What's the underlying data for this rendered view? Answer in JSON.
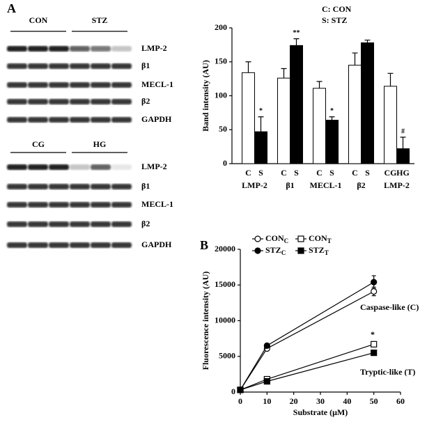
{
  "panel_a": {
    "label": "A",
    "blots": [
      {
        "conditions": [
          "CON",
          "STZ"
        ],
        "rows": [
          "LMP-2",
          "β1",
          "MECL-1",
          "β2",
          "GAPDH"
        ]
      },
      {
        "conditions": [
          "CG",
          "HG"
        ],
        "rows": [
          "LMP-2",
          "β1",
          "MECL-1",
          "β2",
          "GAPDH"
        ]
      }
    ]
  },
  "chart_data": [
    {
      "type": "bar",
      "legend_text": [
        "C: CON",
        "S: STZ"
      ],
      "ylabel": "Band intensity (AU)",
      "ylim": [
        0,
        200
      ],
      "yticks": [
        0,
        50,
        100,
        150,
        200
      ],
      "groups": [
        {
          "label": "LMP-2",
          "bars": [
            {
              "label": "C",
              "value": 134,
              "error": 16,
              "color": "#ffffff"
            },
            {
              "label": "S",
              "value": 47,
              "error": 22,
              "color": "#000000",
              "annotation": "*"
            }
          ]
        },
        {
          "label": "β1",
          "bars": [
            {
              "label": "C",
              "value": 126,
              "error": 14,
              "color": "#ffffff"
            },
            {
              "label": "S",
              "value": 174,
              "error": 10,
              "color": "#000000",
              "annotation": "**"
            }
          ]
        },
        {
          "label": "MECL-1",
          "bars": [
            {
              "label": "C",
              "value": 111,
              "error": 10,
              "color": "#ffffff"
            },
            {
              "label": "S",
              "value": 64,
              "error": 5,
              "color": "#000000",
              "annotation": "*"
            }
          ]
        },
        {
          "label": "β2",
          "bars": [
            {
              "label": "C",
              "value": 145,
              "error": 18,
              "color": "#ffffff"
            },
            {
              "label": "S",
              "value": 178,
              "error": 4,
              "color": "#000000"
            }
          ]
        },
        {
          "label": "LMP-2",
          "bars": [
            {
              "label": "CG",
              "value": 114,
              "error": 19,
              "color": "#ffffff"
            },
            {
              "label": "HG",
              "value": 22,
              "error": 17,
              "color": "#000000",
              "annotation": "#"
            }
          ]
        }
      ]
    },
    {
      "type": "line",
      "panel_label": "B",
      "xlabel": "Substrate (μM)",
      "ylabel": "Fluorescence intensity (AU)",
      "x": [
        0,
        10,
        50
      ],
      "xlim": [
        0,
        60
      ],
      "xticks": [
        0,
        10,
        20,
        30,
        40,
        50,
        60
      ],
      "ylim": [
        0,
        20000
      ],
      "yticks": [
        0,
        5000,
        10000,
        15000,
        20000
      ],
      "series": [
        {
          "name": "CON",
          "name_sub": "C",
          "color": "#000000",
          "marker": "circle",
          "filled": false,
          "values": [
            300,
            6100,
            14100
          ],
          "errors": [
            100,
            300,
            600
          ]
        },
        {
          "name": "STZ",
          "name_sub": "C",
          "color": "#000000",
          "marker": "circle",
          "filled": true,
          "values": [
            300,
            6500,
            15400
          ],
          "errors": [
            100,
            300,
            900
          ]
        },
        {
          "name": "CON",
          "name_sub": "T",
          "color": "#000000",
          "marker": "square",
          "filled": false,
          "values": [
            300,
            1800,
            6700
          ],
          "errors": [
            100,
            150,
            250
          ]
        },
        {
          "name": "STZ",
          "name_sub": "T",
          "color": "#000000",
          "marker": "square",
          "filled": true,
          "values": [
            300,
            1500,
            5500
          ],
          "errors": [
            100,
            150,
            200
          ]
        }
      ],
      "annotations": [
        "Caspase-like (C)",
        "Tryptic-like (T)",
        "*"
      ]
    }
  ]
}
